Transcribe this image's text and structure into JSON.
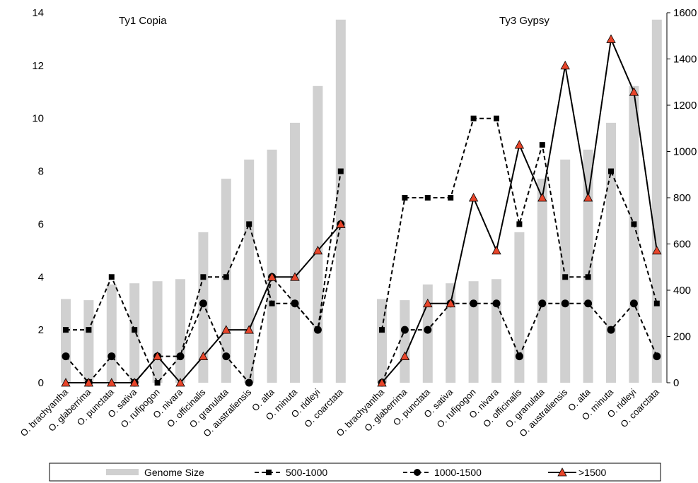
{
  "chart_data": {
    "type": "bar",
    "categories": [
      "O. brachyantha",
      "O. glaberrima",
      "O. punctata",
      "O. sativa",
      "O. rufipogon",
      "O. nivara",
      "O. officinalis",
      "O. granulata",
      "O. australiensis",
      "O. alta",
      "O. minuta",
      "O. ridleyi",
      "O. coarctata"
    ],
    "y_left_ticks": [
      "0",
      "2",
      "4",
      "6",
      "8",
      "10",
      "12",
      "14"
    ],
    "y_right_ticks": [
      "0",
      "200",
      "400",
      "600",
      "800",
      "1000",
      "1200",
      "1400",
      "1600"
    ],
    "ylim_left": [
      0,
      14
    ],
    "ylim_right": [
      0,
      1600
    ],
    "genome_size": [
      362,
      357,
      425,
      430,
      439,
      448,
      651,
      882,
      965,
      1008,
      1124,
      1283,
      1570
    ],
    "panels": [
      {
        "title": "Ty1 Copia",
        "series": [
          {
            "name": "500-1000",
            "values": [
              2,
              2,
              4,
              2,
              0,
              1,
              4,
              4,
              6,
              3,
              3,
              2,
              8
            ]
          },
          {
            "name": "1000-1500",
            "values": [
              1,
              0,
              1,
              0,
              1,
              1,
              3,
              1,
              0,
              4,
              3,
              2,
              6
            ]
          },
          {
            "name": ">1500",
            "values": [
              0,
              0,
              0,
              0,
              1,
              0,
              1,
              2,
              2,
              4,
              4,
              5,
              6
            ]
          }
        ]
      },
      {
        "title": "Ty3 Gypsy",
        "series": [
          {
            "name": "500-1000",
            "values": [
              2,
              7,
              7,
              7,
              10,
              10,
              6,
              9,
              4,
              4,
              8,
              6,
              3
            ]
          },
          {
            "name": "1000-1500",
            "values": [
              0,
              2,
              2,
              3,
              3,
              3,
              1,
              3,
              3,
              3,
              2,
              3,
              1
            ]
          },
          {
            "name": ">1500",
            "values": [
              0,
              1,
              3,
              3,
              7,
              5,
              9,
              7,
              12,
              7,
              13,
              11,
              5
            ]
          }
        ]
      }
    ],
    "legend": [
      "Genome Size",
      "500-1000",
      "1000-1500",
      ">1500"
    ],
    "legend_position": "bottom",
    "grid": false,
    "colors": {
      "bars": "#d0d0d0",
      "lines": "#000000",
      "triangle_fill": "#e8452a"
    }
  }
}
